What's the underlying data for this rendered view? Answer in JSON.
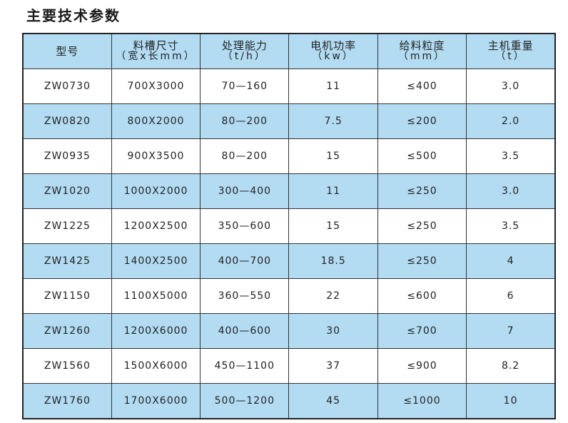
{
  "title": "主要技术参数",
  "colors": {
    "header_bg": "#b3dcf3",
    "alt_row_bg": "#b3dcf3"
  },
  "headers": [
    {
      "label": "型号",
      "unit": ""
    },
    {
      "label": "料槽尺寸",
      "unit": "（宽x长mm）"
    },
    {
      "label": "处理能力",
      "unit": "（t/h）"
    },
    {
      "label": "电机功率",
      "unit": "（kw）"
    },
    {
      "label": "给料粒度",
      "unit": "（mm）"
    },
    {
      "label": "主机重量",
      "unit": "（t）"
    }
  ],
  "rows": [
    [
      "ZW0730",
      "700X3000",
      "70—160",
      "11",
      "≤400",
      "3.0"
    ],
    [
      "ZW0820",
      "800X2000",
      "80—200",
      "7.5",
      "≤200",
      "2.0"
    ],
    [
      "ZW0935",
      "900X3500",
      "80—200",
      "15",
      "≤500",
      "3.5"
    ],
    [
      "ZW1020",
      "1000X2000",
      "300—400",
      "11",
      "≤250",
      "3.0"
    ],
    [
      "ZW1225",
      "1200X2500",
      "350—600",
      "15",
      "≤250",
      "3.5"
    ],
    [
      "ZW1425",
      "1400X2500",
      "400—700",
      "18.5",
      "≤250",
      "4"
    ],
    [
      "ZW1150",
      "1100X5000",
      "360—550",
      "22",
      "≤600",
      "6"
    ],
    [
      "ZW1260",
      "1200X6000",
      "400—600",
      "30",
      "≤700",
      "7"
    ],
    [
      "ZW1560",
      "1500X6000",
      "450—1100",
      "37",
      "≤900",
      "8.2"
    ],
    [
      "ZW1760",
      "1700X6000",
      "500—1200",
      "45",
      "≤1000",
      "10"
    ]
  ]
}
